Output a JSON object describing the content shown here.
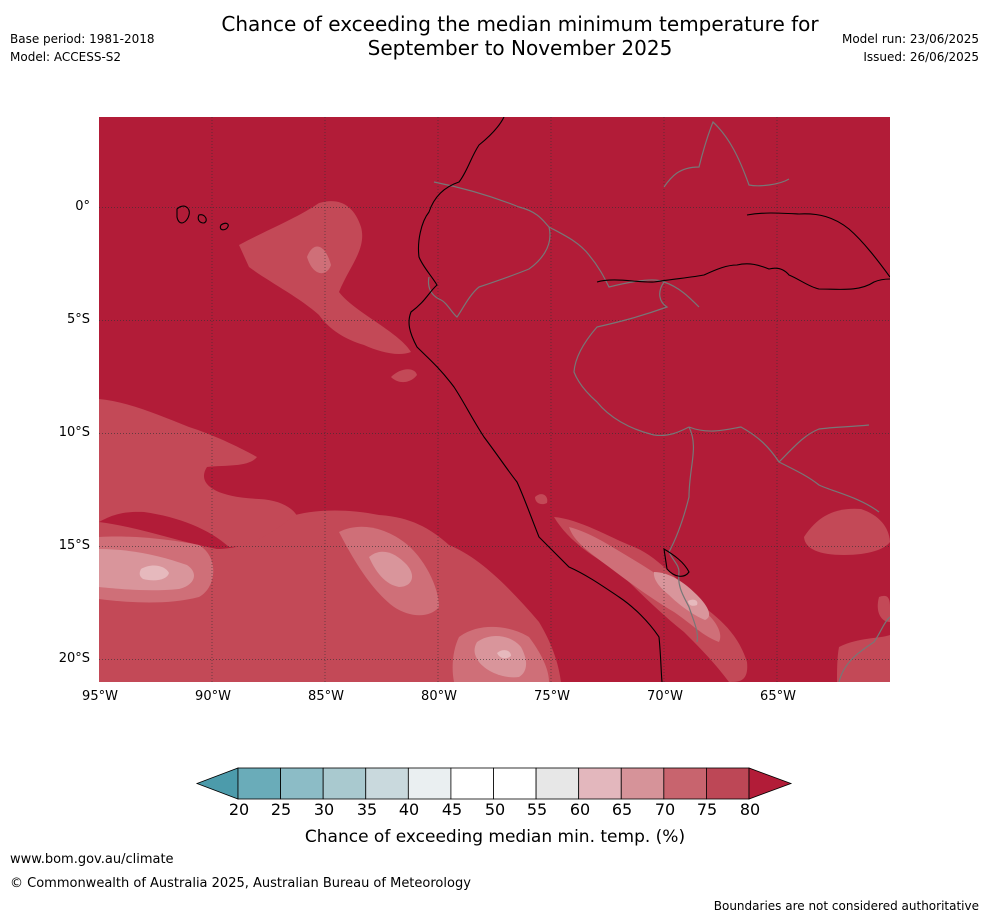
{
  "header": {
    "title_line1": "Chance of exceeding the median minimum temperature for",
    "title_line2": "September to November 2025",
    "base_period": "Base period: 1981-2018",
    "model": "Model: ACCESS-S2",
    "model_run": "Model run: 23/06/2025",
    "issued": "Issued: 26/06/2025"
  },
  "map": {
    "lat_labels": [
      "0°",
      "5°S",
      "10°S",
      "15°S",
      "20°S"
    ],
    "lon_labels": [
      "95°W",
      "90°W",
      "85°W",
      "80°W",
      "75°W",
      "70°W",
      "65°W"
    ],
    "region": {
      "lon_range": [
        -95,
        -60
      ],
      "lat_range": [
        -21,
        4
      ]
    },
    "fill_colors": {
      "p80": "#b21c38",
      "p75": "#c34957",
      "p70": "#cf6f78",
      "p65": "#d9959b",
      "p60": "#e6b9bd",
      "border": "#777777",
      "coast": "#000000",
      "grid": "#333333"
    }
  },
  "colorbar": {
    "ticks": [
      "20",
      "25",
      "30",
      "35",
      "40",
      "45",
      "50",
      "55",
      "60",
      "65",
      "70",
      "75",
      "80"
    ],
    "colors": [
      "#4c9bab",
      "#6aacb9",
      "#8cbcc6",
      "#a9c9cf",
      "#c9d9dd",
      "#eaeff1",
      "#ffffff",
      "#ffffff",
      "#e7e7e7",
      "#e3b7bd",
      "#d69399",
      "#c8646e",
      "#bd4756",
      "#b21c38"
    ],
    "label": "Chance of exceeding median min. temp. (%)"
  },
  "footer": {
    "url": "www.bom.gov.au/climate",
    "copyright": "© Commonwealth of Australia 2025, Australian Bureau of Meteorology",
    "note": "Boundaries are not considered authoritative"
  }
}
